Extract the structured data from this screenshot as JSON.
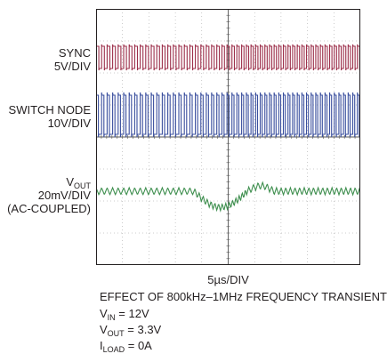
{
  "labels": {
    "sync": [
      "SYNC",
      "5V/DIV"
    ],
    "switch_node": [
      "SWITCH NODE",
      "10V/DIV"
    ],
    "vout": {
      "main": "V",
      "sub": "OUT",
      "lines": [
        "20mV/DIV",
        "(AC-COUPLED)"
      ]
    },
    "time_div": "5µs/DIV"
  },
  "caption": {
    "title": "EFFECT OF 800kHz–1MHz FREQUENCY TRANSIENT",
    "conditions": [
      {
        "main": "V",
        "sub": "IN",
        "rest": " = 12V"
      },
      {
        "main": "V",
        "sub": "OUT",
        "rest": " = 3.3V"
      },
      {
        "main": "I",
        "sub": "LOAD",
        "rest": " = 0A"
      }
    ]
  },
  "colors": {
    "sync": "#9c2f4a",
    "switch_node": "#3a4f9e",
    "vout": "#3f8f4f",
    "grid": "#9a9a9a",
    "frame": "#231f20"
  },
  "chart_data": {
    "type": "line",
    "divisions": {
      "x": 10,
      "y": 8
    },
    "time_per_div": "5µs",
    "series": [
      {
        "name": "SYNC",
        "scale": "5V/DIV",
        "shape": "square wave"
      },
      {
        "name": "SWITCH NODE",
        "scale": "10V/DIV",
        "shape": "square wave"
      },
      {
        "name": "VOUT",
        "scale": "20mV/DIV",
        "coupling": "AC",
        "shape": "ripple with dip at transient"
      }
    ],
    "frequency_transient": {
      "from": "800kHz",
      "to": "1MHz"
    },
    "grid": true
  }
}
